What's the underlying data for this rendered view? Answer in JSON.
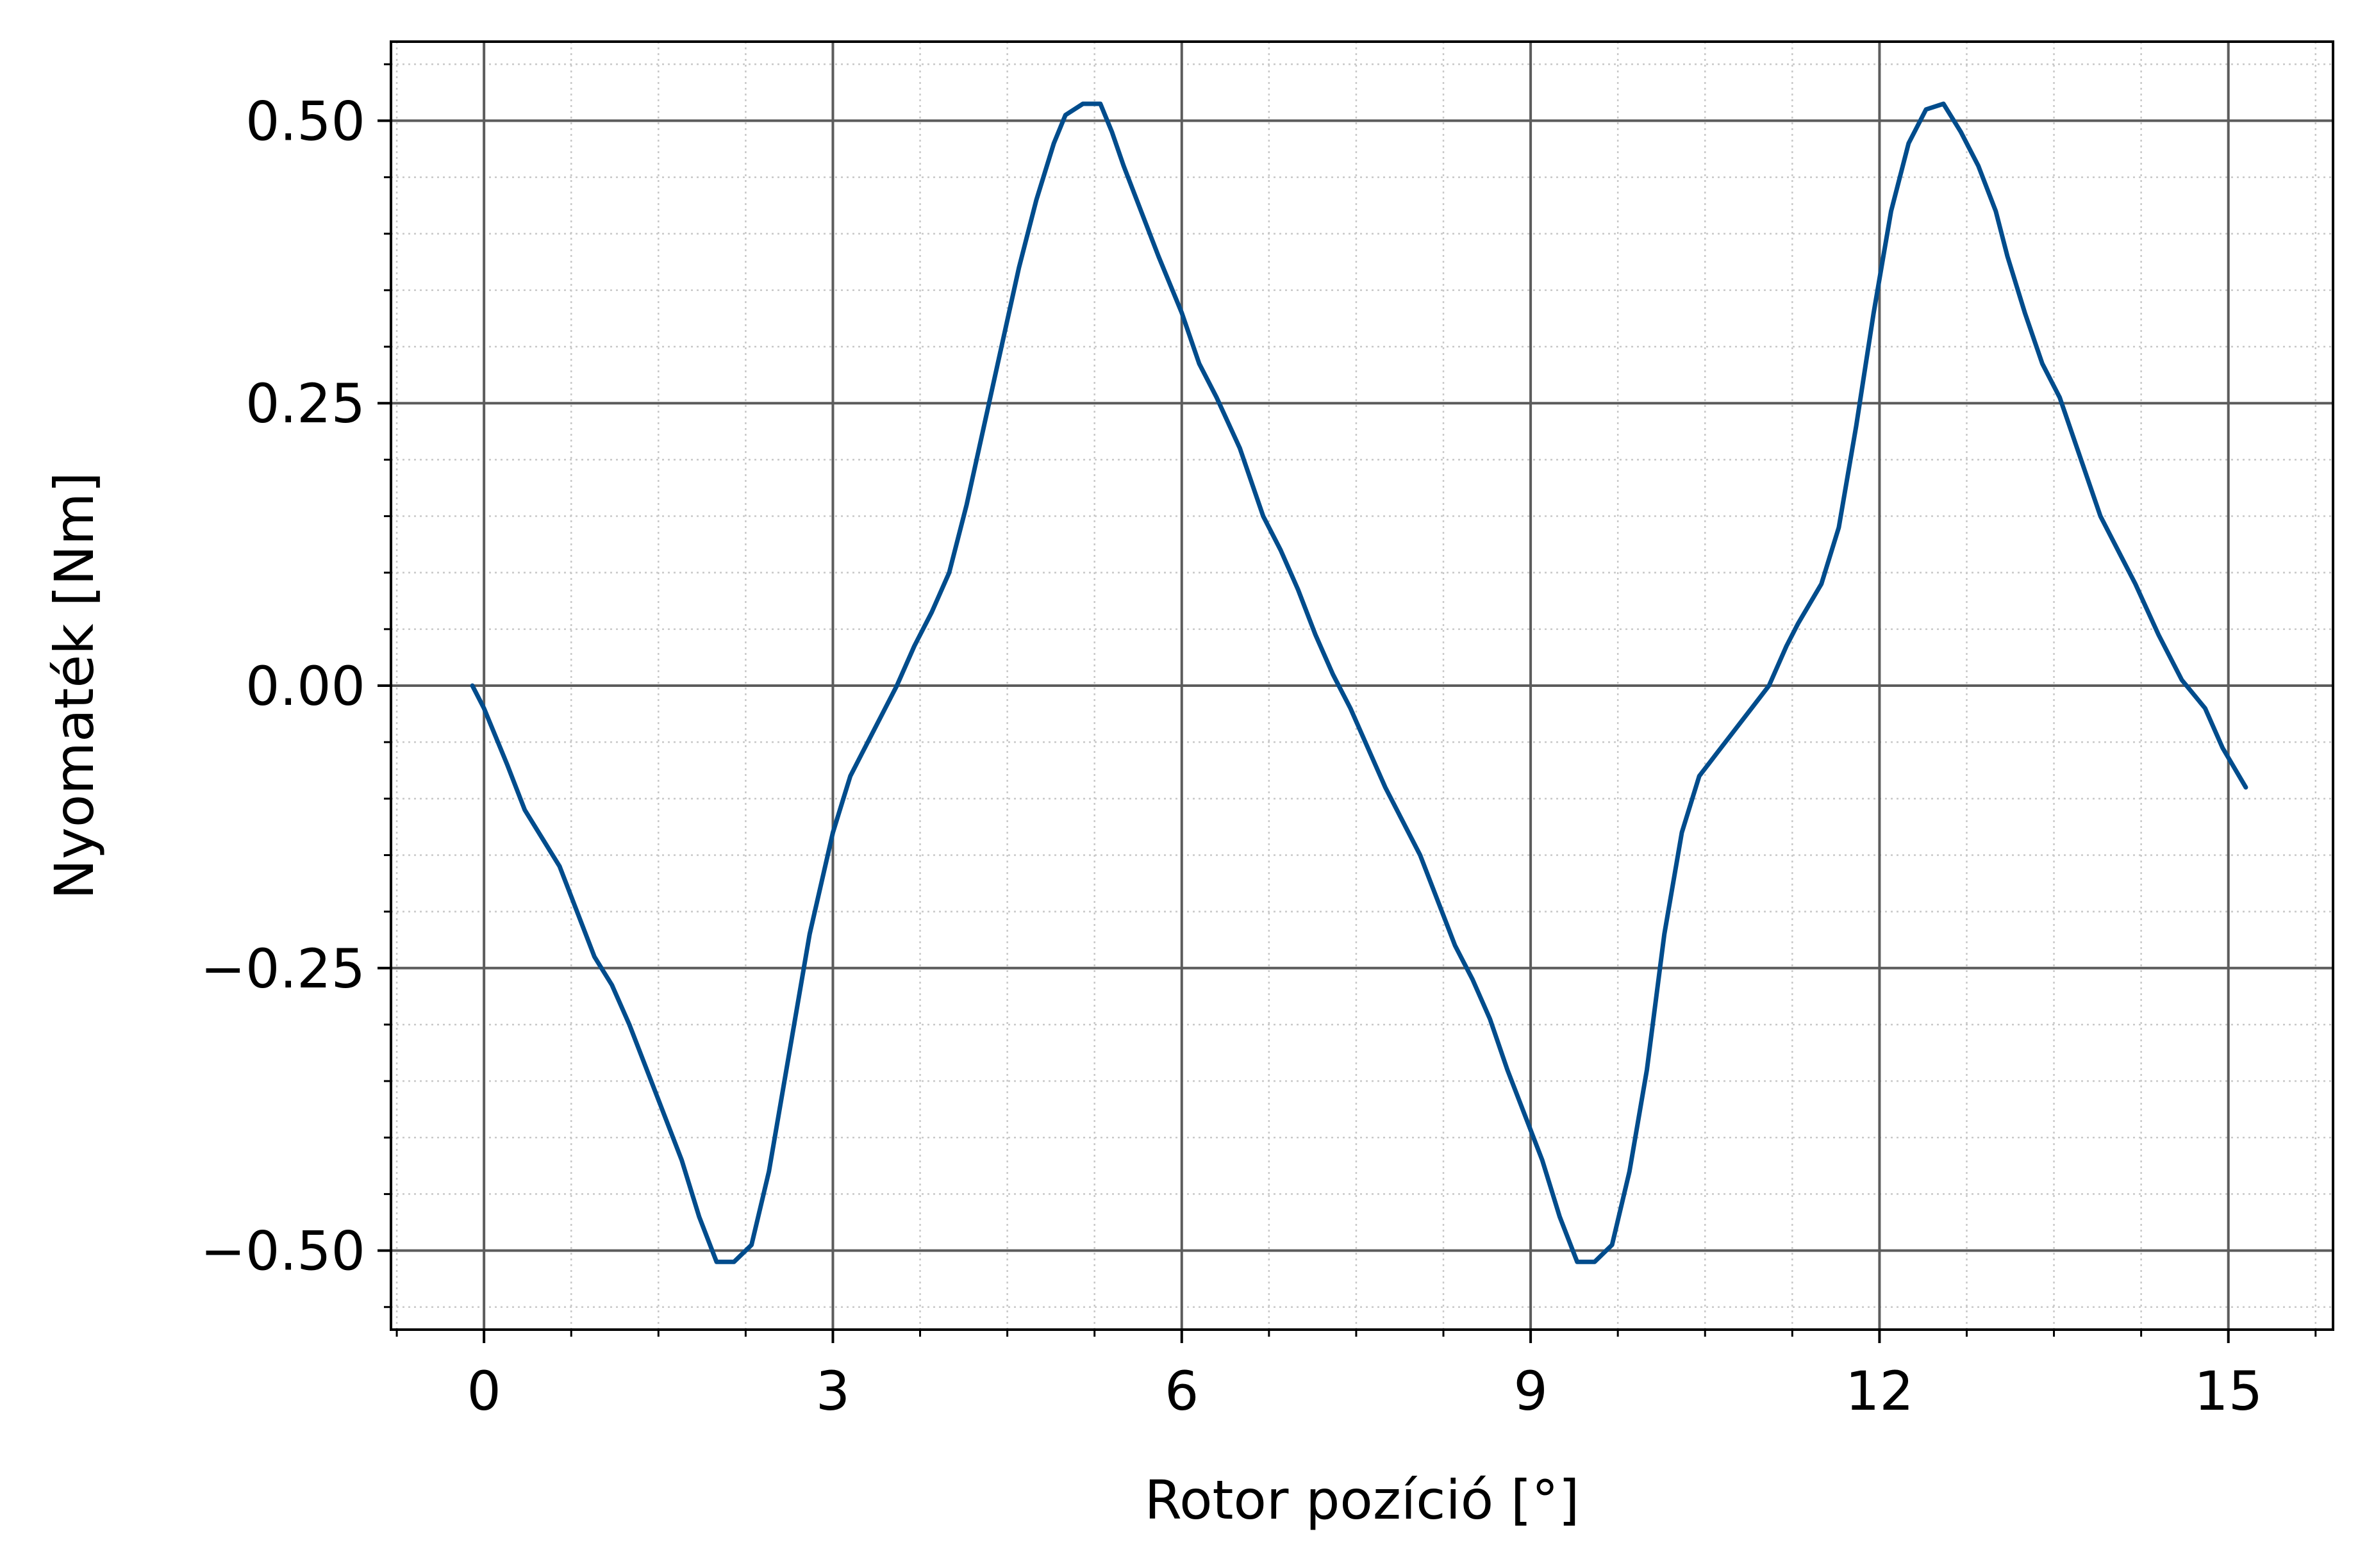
{
  "chart_data": {
    "type": "line",
    "title": "",
    "xlabel": "Rotor pozíció [°]",
    "ylabel": "Nyomaték [Nm]",
    "xlim": [
      -0.8,
      15.9
    ],
    "ylim": [
      -0.57,
      0.57
    ],
    "xticks": [
      0,
      3,
      6,
      9,
      12,
      15
    ],
    "xtick_labels": [
      "0",
      "3",
      "6",
      "9",
      "12",
      "15"
    ],
    "yticks": [
      -0.5,
      -0.25,
      0.0,
      0.25,
      0.5
    ],
    "ytick_labels": [
      "−0.50",
      "−0.25",
      "0.00",
      "0.25",
      "0.50"
    ],
    "x_minor_step": 0.75,
    "y_minor_step": 0.05,
    "grid": "major solid, minor dotted",
    "legend": "none",
    "colors": {
      "line": "#004c8c",
      "major_grid": "#5c5c5c",
      "minor_grid": "#c8c8c8",
      "frame": "#000000"
    },
    "series": [
      {
        "x": [
          -0.1,
          0.0,
          0.2,
          0.35,
          0.5,
          0.65,
          0.8,
          0.95,
          1.1,
          1.25,
          1.4,
          1.55,
          1.7,
          1.85,
          2.0,
          2.15,
          2.3,
          2.45,
          2.6,
          2.8,
          3.0,
          3.15,
          3.25,
          3.35,
          3.45,
          3.55,
          3.7,
          3.85,
          4.0,
          4.15,
          4.3,
          4.45,
          4.6,
          4.75,
          4.9,
          5.0,
          5.15,
          5.3,
          5.4,
          5.5,
          5.65,
          5.8,
          6.0,
          6.15,
          6.3,
          6.5,
          6.7,
          6.85,
          7.0,
          7.15,
          7.3,
          7.45,
          7.6,
          7.75,
          7.9,
          8.05,
          8.2,
          8.35,
          8.5,
          8.65,
          8.8,
          8.95,
          9.1,
          9.25,
          9.4,
          9.55,
          9.7,
          9.85,
          10.0,
          10.15,
          10.3,
          10.45,
          10.6,
          10.75,
          10.9,
          11.05,
          11.2,
          11.3,
          11.5,
          11.65,
          11.8,
          11.95,
          12.1,
          12.25,
          12.4,
          12.55,
          12.7,
          12.85,
          13.0,
          13.1,
          13.25,
          13.4,
          13.55,
          13.7,
          13.9,
          14.05,
          14.2,
          14.4,
          14.6,
          14.8,
          14.95,
          15.15
        ],
        "y": [
          0.0,
          -0.02,
          -0.07,
          -0.11,
          -0.135,
          -0.16,
          -0.2,
          -0.24,
          -0.265,
          -0.3,
          -0.34,
          -0.38,
          -0.42,
          -0.47,
          -0.51,
          -0.51,
          -0.495,
          -0.43,
          -0.34,
          -0.22,
          -0.13,
          -0.08,
          -0.06,
          -0.04,
          -0.02,
          0.0,
          0.035,
          0.065,
          0.1,
          0.16,
          0.23,
          0.3,
          0.37,
          0.43,
          0.48,
          0.505,
          0.515,
          0.515,
          0.49,
          0.46,
          0.42,
          0.38,
          0.33,
          0.285,
          0.255,
          0.21,
          0.15,
          0.12,
          0.085,
          0.045,
          0.01,
          -0.02,
          -0.055,
          -0.09,
          -0.12,
          -0.15,
          -0.19,
          -0.23,
          -0.26,
          -0.295,
          -0.34,
          -0.38,
          -0.42,
          -0.47,
          -0.51,
          -0.51,
          -0.495,
          -0.43,
          -0.34,
          -0.22,
          -0.13,
          -0.08,
          -0.06,
          -0.04,
          -0.02,
          0.0,
          0.035,
          0.055,
          0.09,
          0.14,
          0.23,
          0.33,
          0.42,
          0.48,
          0.51,
          0.515,
          0.49,
          0.46,
          0.42,
          0.38,
          0.33,
          0.285,
          0.255,
          0.21,
          0.15,
          0.12,
          0.09,
          0.045,
          0.005,
          -0.02,
          -0.055,
          -0.09
        ]
      }
    ]
  }
}
